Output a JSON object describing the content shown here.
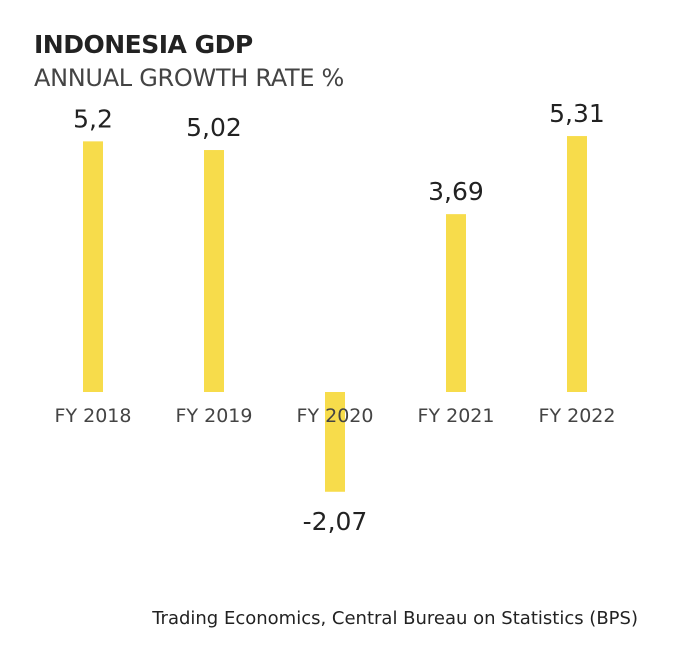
{
  "chart_data": {
    "type": "bar",
    "title": "INDONESIA GDP",
    "subtitle": "ANNUAL GROWTH RATE %",
    "categories": [
      "FY 2018",
      "FY 2019",
      "FY 2020",
      "FY 2021",
      "FY 2022"
    ],
    "values": [
      5.2,
      5.02,
      -2.07,
      3.69,
      5.31
    ],
    "data_labels": [
      "5,2",
      "5,02",
      "-2,07",
      "3,69",
      "5,31"
    ],
    "xlabel": "",
    "ylabel": "",
    "ylim": [
      -2.07,
      5.31
    ],
    "grid": false,
    "legend": "none",
    "bar_color": "#f7dc4b"
  },
  "source": "Trading Economics, Central Bureau on Statistics (BPS)"
}
